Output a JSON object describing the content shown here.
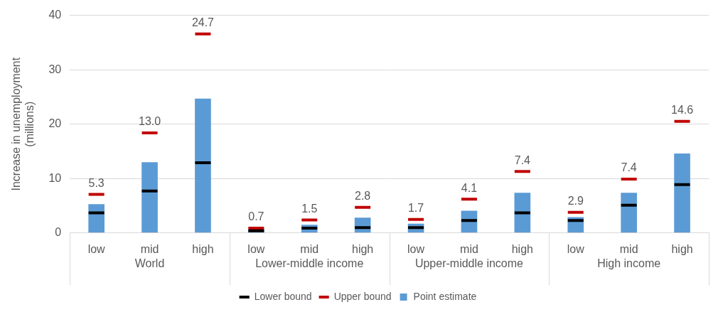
{
  "chart_data": {
    "type": "bar",
    "ylabel": [
      "Increase in unemployment",
      "(millions)"
    ],
    "categories": [
      "low",
      "mid",
      "high",
      "low",
      "mid",
      "high",
      "low",
      "mid",
      "high",
      "low",
      "mid",
      "high"
    ],
    "groups": [
      "World",
      "World",
      "World",
      "Lower-middle income",
      "Lower-middle income",
      "Lower-middle income",
      "Upper-middle income",
      "Upper-middle income",
      "Upper-middle income",
      "High income",
      "High income",
      "High income"
    ],
    "series": [
      {
        "name": "Point estimate",
        "type": "bar",
        "color": "#5b9bd5",
        "values": [
          5.3,
          13.0,
          24.7,
          0.7,
          1.5,
          2.8,
          1.7,
          4.1,
          7.4,
          2.9,
          7.4,
          14.6
        ],
        "value_labels": [
          "5.3",
          "13.0",
          "24.7",
          "0.7",
          "1.5",
          "2.8",
          "1.7",
          "4.1",
          "7.4",
          "2.9",
          "7.4",
          "14.6"
        ]
      },
      {
        "name": "Lower bound",
        "type": "line",
        "marker": "dash",
        "line_style": "none",
        "color": "#000000",
        "values": [
          3.7,
          7.7,
          12.9,
          0.4,
          0.9,
          1.0,
          1.0,
          2.3,
          3.7,
          2.3,
          5.1,
          8.9
        ]
      },
      {
        "name": "Upper bound",
        "type": "line",
        "marker": "dash",
        "line_style": "none",
        "color": "#c00000",
        "values": [
          7.1,
          18.4,
          36.6,
          0.9,
          2.4,
          4.7,
          2.5,
          6.2,
          11.3,
          3.8,
          9.9,
          20.5
        ]
      }
    ],
    "ylim": [
      0,
      40
    ],
    "yticks": [
      0,
      10,
      20,
      30,
      40
    ],
    "grid": true,
    "legend": "bottom",
    "data_labels": true
  }
}
